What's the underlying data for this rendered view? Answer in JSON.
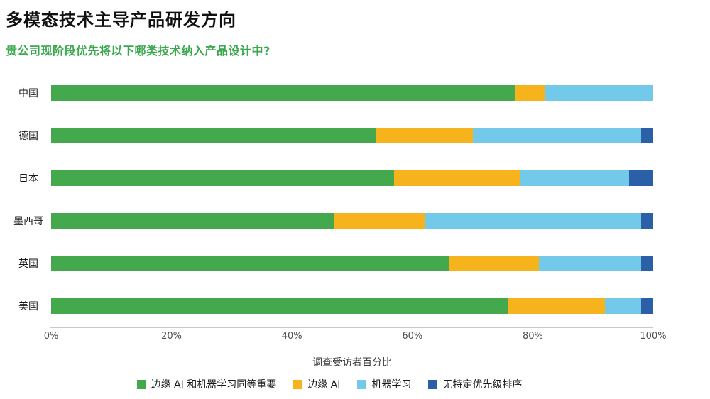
{
  "page": {
    "title": "多模态技术主导产品研发方向",
    "subtitle": "贵公司现阶段优先将以下哪类技术纳入产品设计中?"
  },
  "chart_data": {
    "type": "bar",
    "orientation": "horizontal",
    "stacked": true,
    "grid": false,
    "legend_position": "bottom",
    "title": "多模态技术主导产品研发方向",
    "subtitle": "贵公司现阶段优先将以下哪类技术纳入产品设计中?",
    "categories": [
      "中国",
      "德国",
      "日本",
      "墨西哥",
      "英国",
      "美国"
    ],
    "series": [
      {
        "name": "边缘 AI 和机器学习同等重要",
        "color": "#44a84c",
        "values": [
          77,
          54,
          57,
          47,
          66,
          76
        ]
      },
      {
        "name": "边缘 AI",
        "color": "#f6b31b",
        "values": [
          5,
          16,
          21,
          15,
          15,
          16
        ]
      },
      {
        "name": "机器学习",
        "color": "#72c9e9",
        "values": [
          18,
          28,
          18,
          36,
          17,
          6
        ]
      },
      {
        "name": "无特定优先级排序",
        "color": "#2b5fa7",
        "values": [
          0,
          2,
          4,
          2,
          2,
          2
        ]
      }
    ],
    "xlabel": "调查受访者百分比",
    "ylabel": "",
    "xlim": [
      0,
      100
    ],
    "x_ticks": [
      "0%",
      "20%",
      "40%",
      "60%",
      "80%",
      "100%"
    ]
  }
}
